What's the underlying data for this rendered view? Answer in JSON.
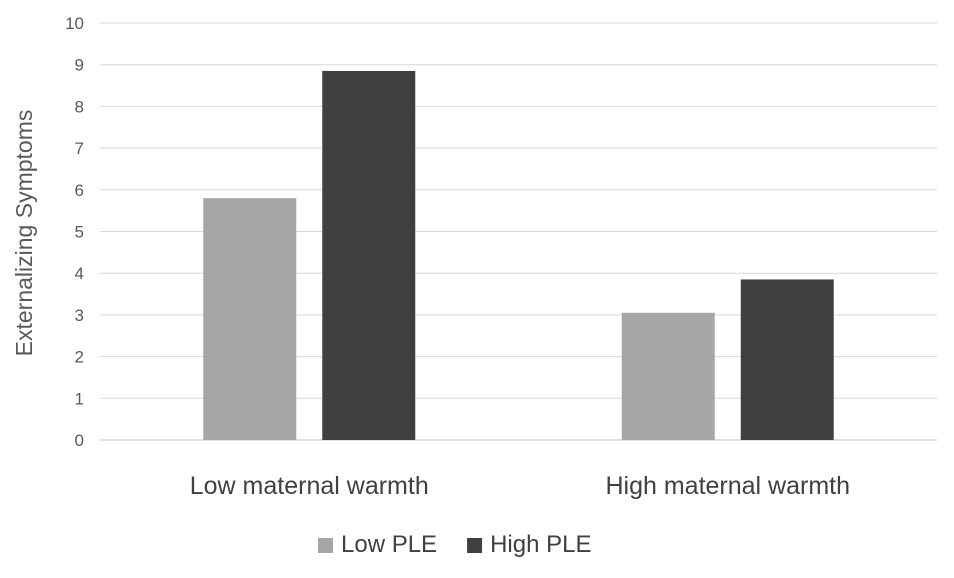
{
  "chart_data": {
    "type": "bar",
    "categories": [
      "Low maternal warmth",
      "High maternal warmth"
    ],
    "series": [
      {
        "name": "Low PLE",
        "values": [
          5.8,
          3.05
        ],
        "color": "#a6a6a6"
      },
      {
        "name": "High PLE",
        "values": [
          8.85,
          3.85
        ],
        "color": "#404040"
      }
    ],
    "ylabel": "Externalizing Symptoms",
    "xlabel": "",
    "ylim": [
      0,
      10
    ],
    "yticks": [
      0,
      1,
      2,
      3,
      4,
      5,
      6,
      7,
      8,
      9,
      10
    ],
    "grid": true,
    "legend_position": "bottom"
  }
}
